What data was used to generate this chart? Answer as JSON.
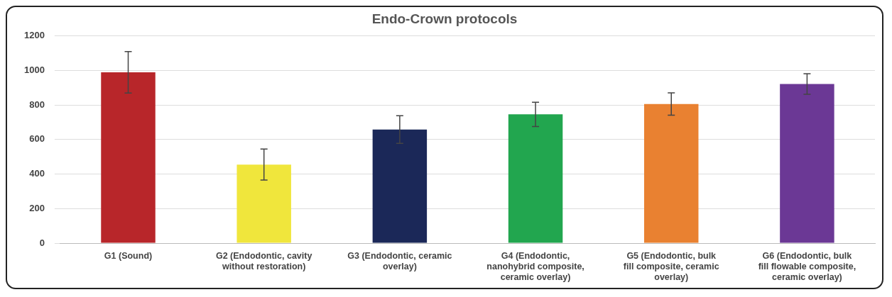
{
  "chart_data": {
    "type": "bar",
    "title": "Endo-Crown protocols",
    "categories": [
      "G1 (Sound)",
      "G2 (Endodontic, cavity without restoration)",
      "G3 (Endodontic, ceramic overlay)",
      "G4 (Endodontic, nanohybrid composite, ceramic overlay)",
      "G5 (Endodontic, bulk fill composite, ceramic overlay)",
      "G6 (Endodontic, bulk fill flowable composite, ceramic overlay)"
    ],
    "values": [
      990,
      455,
      658,
      746,
      806,
      922
    ],
    "errors": [
      120,
      90,
      80,
      70,
      65,
      60
    ],
    "colors": [
      "#b8262a",
      "#f0e63c",
      "#1b2858",
      "#22a64f",
      "#e98131",
      "#6b3895"
    ],
    "ylim": [
      0,
      1200
    ],
    "yticks": [
      0,
      200,
      400,
      600,
      800,
      1000,
      1200
    ],
    "grid": "y",
    "legend": false
  }
}
